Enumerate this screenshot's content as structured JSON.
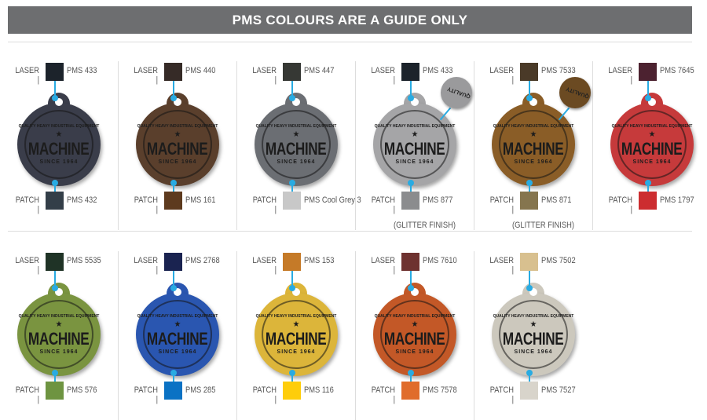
{
  "header": {
    "title": "PMS COLOURS ARE A GUIDE ONLY"
  },
  "labels": {
    "laser": "LASER",
    "patch": "PATCH",
    "separator": "|"
  },
  "badge_text": {
    "arc": "QUALITY HEAVY INDUSTRIAL EQUIPMENT",
    "name": "MACHINE",
    "since": "SINCE 1964"
  },
  "accent_color": "#29abe2",
  "rows": [
    [
      {
        "laser_pms": "PMS 433",
        "laser_color": "#1c232b",
        "patch_pms": "PMS 432",
        "patch_color": "#333e48",
        "badge_color": "#3a3d4a"
      },
      {
        "laser_pms": "PMS 440",
        "laser_color": "#362b27",
        "patch_pms": "PMS 161",
        "patch_color": "#5d3a1e",
        "badge_color": "#5a3f2c"
      },
      {
        "laser_pms": "PMS 447",
        "laser_color": "#363834",
        "patch_pms": "PMS Cool Grey 3",
        "patch_color": "#c8c8c8",
        "badge_color": "#6b6e73"
      },
      {
        "laser_pms": "PMS 433",
        "laser_color": "#1c232b",
        "patch_pms": "PMS 877",
        "patch_color": "#8b8c8e",
        "badge_color": "#a5a5a7",
        "note": "(GLITTER FINISH)",
        "zoom_color": "#9a9a9c"
      },
      {
        "laser_pms": "PMS 7533",
        "laser_color": "#4a3a28",
        "patch_pms": "PMS 871",
        "patch_color": "#85754e",
        "badge_color": "#8a5d27",
        "note": "(GLITTER FINISH)",
        "zoom_color": "#6b4a22"
      },
      {
        "laser_pms": "PMS 7645",
        "laser_color": "#4c2230",
        "patch_pms": "PMS 1797",
        "patch_color": "#cc2d30",
        "badge_color": "#c63a3b"
      }
    ],
    [
      {
        "laser_pms": "PMS 5535",
        "laser_color": "#1f3326",
        "patch_pms": "PMS 576",
        "patch_color": "#6e9441",
        "badge_color": "#7a9440"
      },
      {
        "laser_pms": "PMS 2768",
        "laser_color": "#1a2350",
        "patch_pms": "PMS 285",
        "patch_color": "#0a72c4",
        "badge_color": "#2a56b0"
      },
      {
        "laser_pms": "PMS 153",
        "laser_color": "#c57a28",
        "patch_pms": "PMS 116",
        "patch_color": "#fecd0b",
        "badge_color": "#dcb53a"
      },
      {
        "laser_pms": "PMS 7610",
        "laser_color": "#6e3230",
        "patch_pms": "PMS 7578",
        "patch_color": "#e06c2b",
        "badge_color": "#c35827"
      },
      {
        "laser_pms": "PMS 7502",
        "laser_color": "#d8c08f",
        "patch_pms": "PMS 7527",
        "patch_color": "#d8d4cb",
        "badge_color": "#ccc8bd"
      }
    ]
  ]
}
